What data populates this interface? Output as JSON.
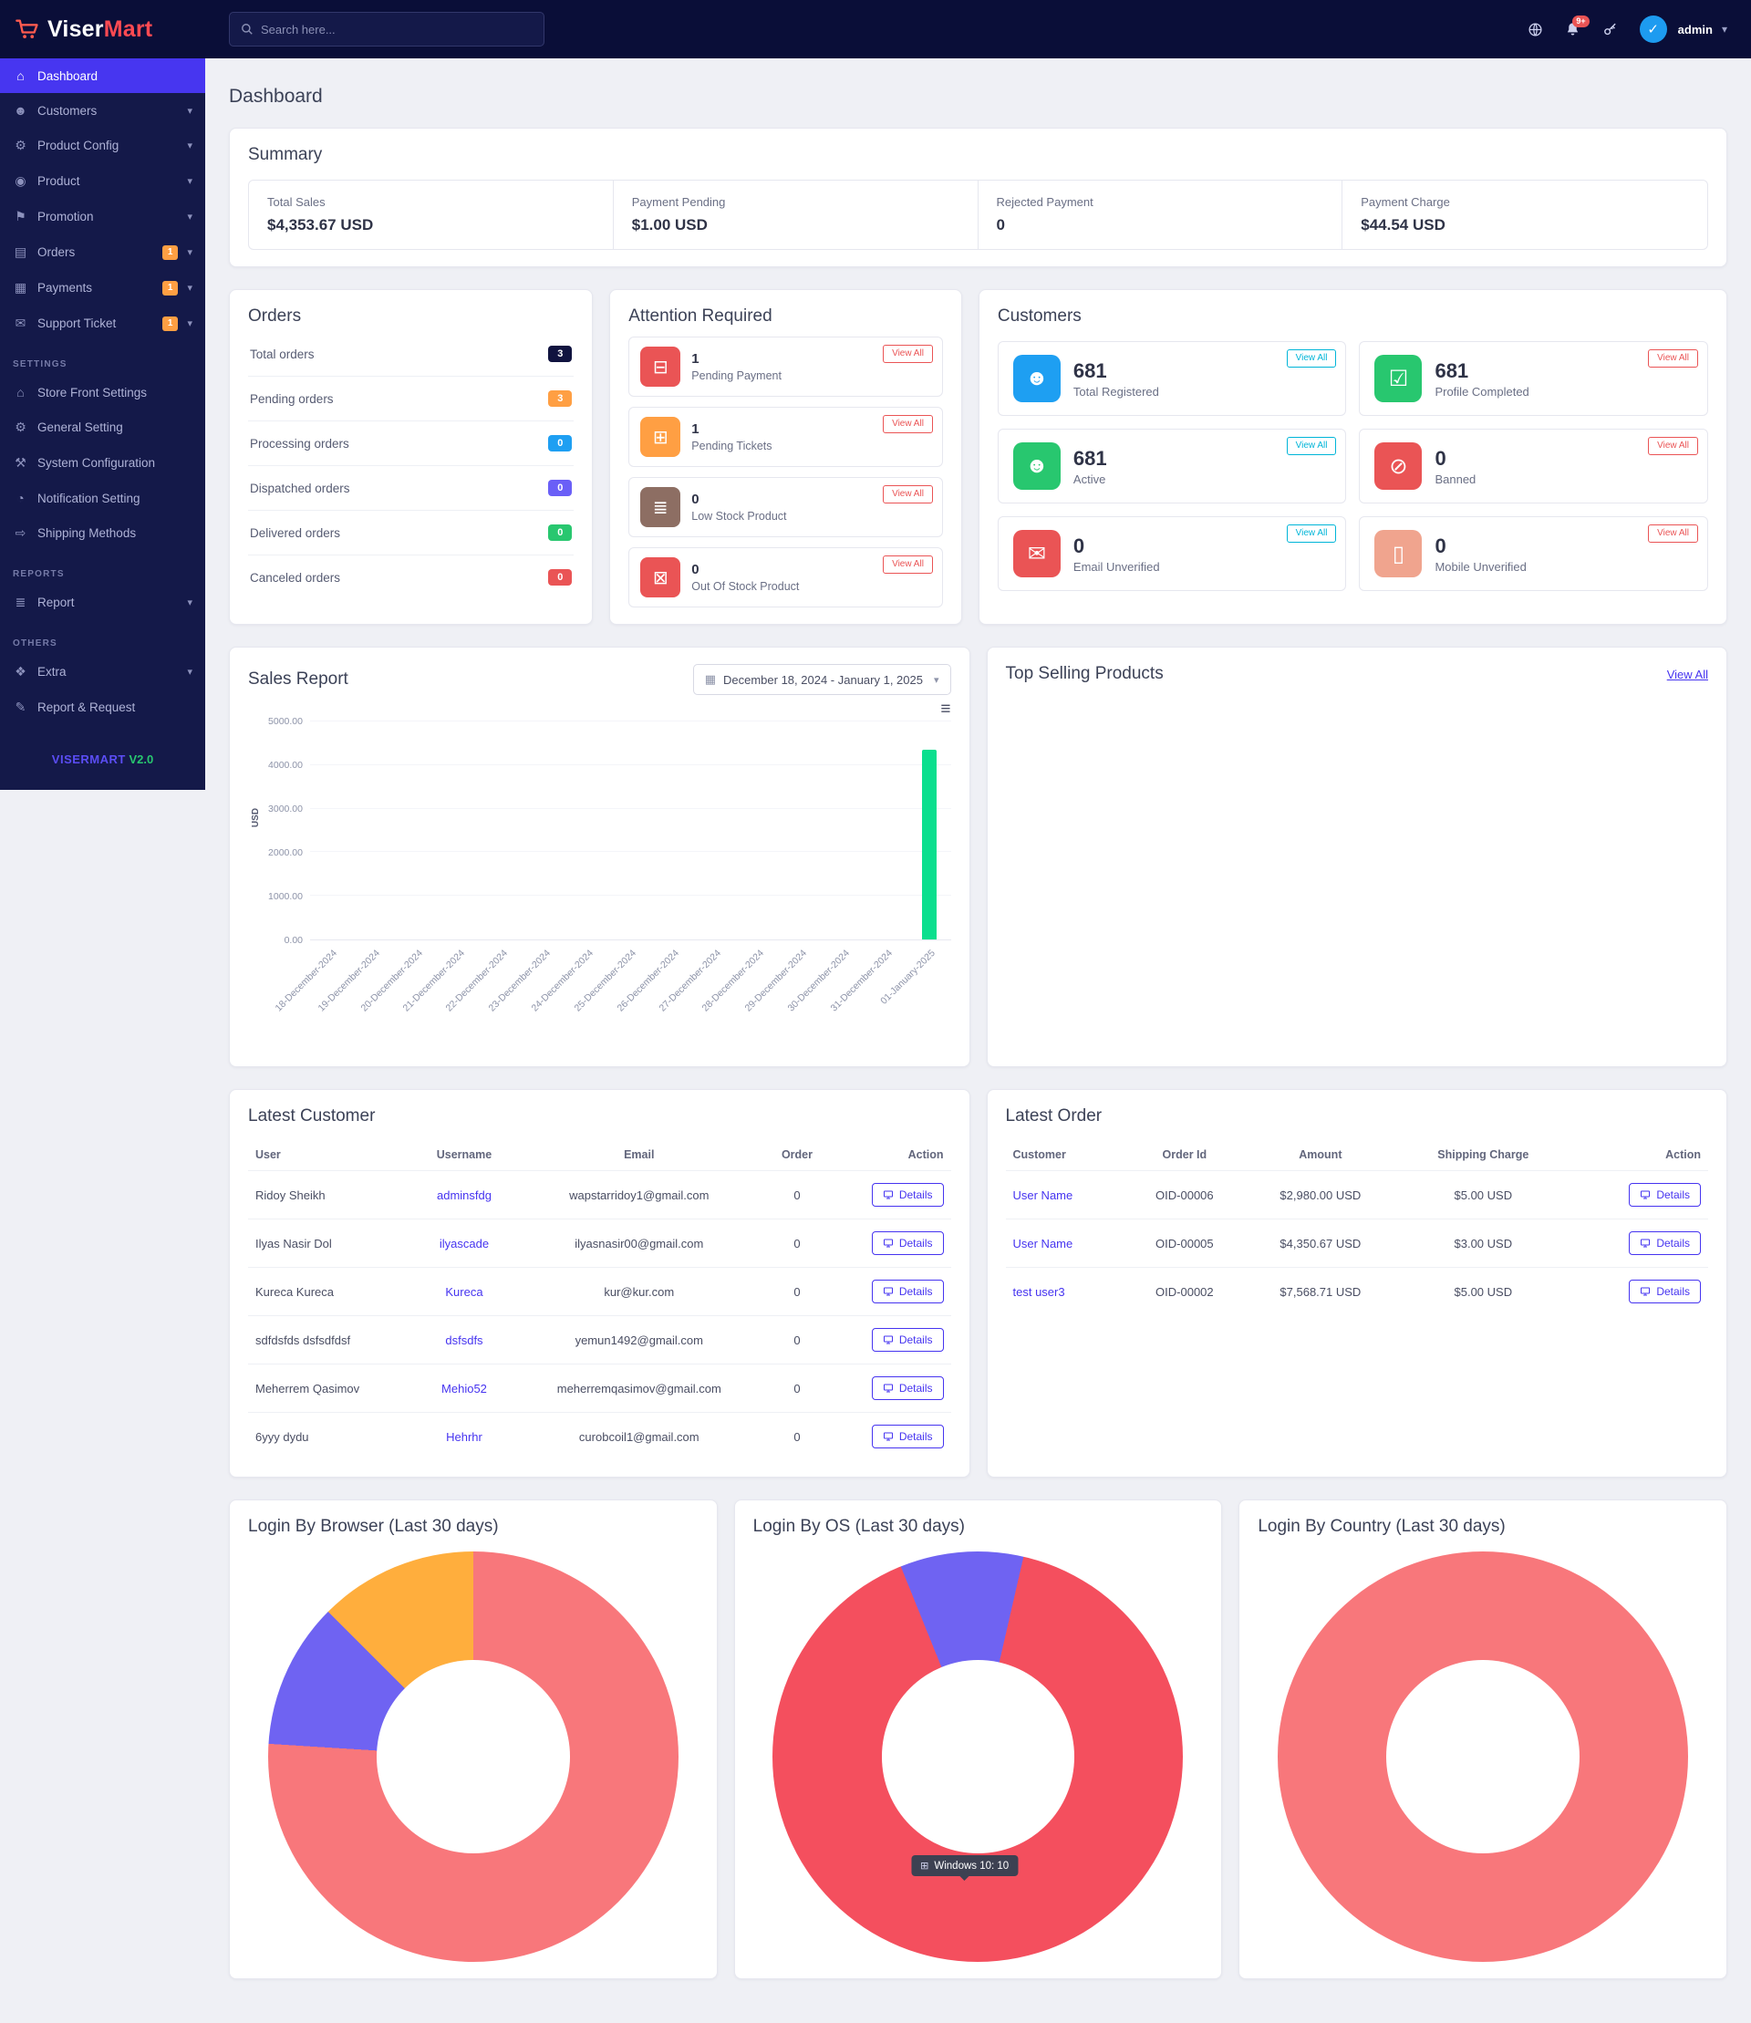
{
  "navbar": {
    "search_placeholder": "Search here...",
    "notification_badge": "9+",
    "user": "admin",
    "icons": [
      "globe-icon",
      "bell-icon",
      "key-icon",
      "avatar-check-icon",
      "chevron-down-icon"
    ]
  },
  "brand": {
    "name_primary": "Viser",
    "name_accent": "Mart",
    "version_brand": "VISERMART",
    "version": "V2.0"
  },
  "page": {
    "title": "Dashboard"
  },
  "sidebar": {
    "sections": [
      {
        "header": null,
        "items": [
          {
            "label": "Dashboard",
            "icon": "dashboard-icon",
            "active": true
          },
          {
            "label": "Customers",
            "icon": "customers-icon",
            "chevron": true
          },
          {
            "label": "Product Config",
            "icon": "product-config-icon",
            "chevron": true
          },
          {
            "label": "Product",
            "icon": "product-icon",
            "chevron": true
          },
          {
            "label": "Promotion",
            "icon": "promotion-icon",
            "chevron": true
          },
          {
            "label": "Orders",
            "icon": "orders-icon",
            "badge": "1",
            "chevron": true
          },
          {
            "label": "Payments",
            "icon": "payments-icon",
            "badge": "1",
            "chevron": true
          },
          {
            "label": "Support Ticket",
            "icon": "support-ticket-icon",
            "badge": "1",
            "chevron": true
          }
        ]
      },
      {
        "header": "SETTINGS",
        "items": [
          {
            "label": "Store Front Settings",
            "icon": "store-front-icon"
          },
          {
            "label": "General Setting",
            "icon": "general-setting-icon"
          },
          {
            "label": "System Configuration",
            "icon": "system-config-icon"
          },
          {
            "label": "Notification Setting",
            "icon": "notification-icon"
          },
          {
            "label": "Shipping Methods",
            "icon": "shipping-icon"
          }
        ]
      },
      {
        "header": "REPORTS",
        "items": [
          {
            "label": "Report",
            "icon": "report-icon",
            "chevron": true
          }
        ]
      },
      {
        "header": "OTHERS",
        "items": [
          {
            "label": "Extra",
            "icon": "extra-icon",
            "chevron": true
          },
          {
            "label": "Report & Request",
            "icon": "report-request-icon"
          }
        ]
      }
    ]
  },
  "summary": {
    "title": "Summary",
    "items": [
      {
        "label": "Total Sales",
        "value": "$4,353.67 USD"
      },
      {
        "label": "Payment Pending",
        "value": "$1.00 USD"
      },
      {
        "label": "Rejected Payment",
        "value": "0"
      },
      {
        "label": "Payment Charge",
        "value": "$44.54 USD"
      }
    ]
  },
  "orders_card": {
    "title": "Orders",
    "rows": [
      {
        "label": "Total orders",
        "count": "3",
        "color": "#10133f"
      },
      {
        "label": "Pending orders",
        "count": "3",
        "color": "#ff9f43"
      },
      {
        "label": "Processing orders",
        "count": "0",
        "color": "#1e9ff2"
      },
      {
        "label": "Dispatched orders",
        "count": "0",
        "color": "#6a5ff7"
      },
      {
        "label": "Delivered orders",
        "count": "0",
        "color": "#28c76f"
      },
      {
        "label": "Canceled orders",
        "count": "0",
        "color": "#ea5455"
      }
    ]
  },
  "attention": {
    "title": "Attention Required",
    "view_all": "View All",
    "items": [
      {
        "count": "1",
        "label": "Pending Payment",
        "icon": "pending-payment-icon",
        "color": "#ea5455"
      },
      {
        "count": "1",
        "label": "Pending Tickets",
        "icon": "pending-tickets-icon",
        "color": "#ff9f43"
      },
      {
        "count": "0",
        "label": "Low Stock Product",
        "icon": "low-stock-icon",
        "color": "#8d6e63"
      },
      {
        "count": "0",
        "label": "Out Of Stock Product",
        "icon": "out-of-stock-icon",
        "color": "#ea5455"
      }
    ]
  },
  "customers_card": {
    "title": "Customers",
    "view_all": "View All",
    "items": [
      {
        "count": "681",
        "label": "Total Registered",
        "icon": "users-icon",
        "color": "#1e9ff2",
        "view_color": "#00b5d8"
      },
      {
        "count": "681",
        "label": "Profile Completed",
        "icon": "profile-completed-icon",
        "color": "#28c76f",
        "view_color": "#ea5455"
      },
      {
        "count": "681",
        "label": "Active",
        "icon": "active-users-icon",
        "color": "#28c76f",
        "view_color": "#00b5d8"
      },
      {
        "count": "0",
        "label": "Banned",
        "icon": "banned-icon",
        "color": "#ea5455",
        "view_color": "#ea5455"
      },
      {
        "count": "0",
        "label": "Email Unverified",
        "icon": "email-unverified-icon",
        "color": "#ea5455",
        "view_color": "#00b5d8"
      },
      {
        "count": "0",
        "label": "Mobile Unverified",
        "icon": "mobile-unverified-icon",
        "color": "#f0a48e",
        "view_color": "#ea5455"
      }
    ]
  },
  "sales_report": {
    "title": "Sales Report",
    "date_range": "December 18, 2024 - January 1, 2025"
  },
  "top_selling": {
    "title": "Top Selling Products",
    "view_all": "View All"
  },
  "latest_customer": {
    "title": "Latest Customer",
    "headers": [
      "User",
      "Username",
      "Email",
      "Order",
      "Action"
    ],
    "details_label": "Details",
    "rows": [
      {
        "user": "Ridoy Sheikh",
        "username": "adminsfdg",
        "email": "wapstarridoy1@gmail.com",
        "order": "0"
      },
      {
        "user": "Ilyas Nasir Dol",
        "username": "ilyascade",
        "email": "ilyasnasir00@gmail.com",
        "order": "0"
      },
      {
        "user": "Kureca Kureca",
        "username": "Kureca",
        "email": "kur@kur.com",
        "order": "0"
      },
      {
        "user": "sdfdsfds dsfsdfdsf",
        "username": "dsfsdfs",
        "email": "yemun1492@gmail.com",
        "order": "0"
      },
      {
        "user": "Meherrem Qasimov",
        "username": "Mehio52",
        "email": "meherremqasimov@gmail.com",
        "order": "0"
      },
      {
        "user": "6yyy dydu",
        "username": "Hehrhr",
        "email": "curobcoil1@gmail.com",
        "order": "0"
      }
    ]
  },
  "latest_order": {
    "title": "Latest Order",
    "headers": [
      "Customer",
      "Order Id",
      "Amount",
      "Shipping Charge",
      "Action"
    ],
    "details_label": "Details",
    "rows": [
      {
        "customer": "User Name",
        "order_id": "OID-00006",
        "amount": "$2,980.00 USD",
        "shipping": "$5.00 USD"
      },
      {
        "customer": "User Name",
        "order_id": "OID-00005",
        "amount": "$4,350.67 USD",
        "shipping": "$3.00 USD"
      },
      {
        "customer": "test user3",
        "order_id": "OID-00002",
        "amount": "$7,568.71 USD",
        "shipping": "$5.00 USD"
      }
    ]
  },
  "chart_data": [
    {
      "type": "bar",
      "title": "Sales Report",
      "ylabel": "USD",
      "ylim": [
        0,
        5000
      ],
      "yticks": [
        "0.00",
        "1000.00",
        "2000.00",
        "3000.00",
        "4000.00",
        "5000.00"
      ],
      "categories": [
        "18-December-2024",
        "19-December-2024",
        "20-December-2024",
        "21-December-2024",
        "22-December-2024",
        "23-December-2024",
        "24-December-2024",
        "25-December-2024",
        "26-December-2024",
        "27-December-2024",
        "28-December-2024",
        "29-December-2024",
        "30-December-2024",
        "31-December-2024",
        "01-January-2025"
      ],
      "values": [
        0,
        0,
        0,
        0,
        0,
        0,
        0,
        0,
        0,
        0,
        0,
        0,
        0,
        0,
        4353.67
      ],
      "bar_color": "#0bdf8e",
      "grid": "off",
      "legend": "none"
    },
    {
      "type": "pie",
      "title": "Login By Browser (Last 30 days)",
      "rotation": 0,
      "segments": [
        {
          "value": 76,
          "color": "#f8777b"
        },
        {
          "value": 11.5,
          "color": "#6f63f2"
        },
        {
          "value": 12.5,
          "color": "#ffae3d"
        }
      ]
    },
    {
      "type": "pie",
      "title": "Login By OS (Last 30 days)",
      "rotation": 338,
      "segments": [
        {
          "value": 9.7,
          "color": "#6f63f2"
        },
        {
          "value": 90.3,
          "color": "#f44f5e"
        }
      ],
      "tooltip": "Windows 10: 10"
    },
    {
      "type": "pie",
      "title": "Login By Country (Last 30 days)",
      "rotation": 0,
      "segments": [
        {
          "value": 100,
          "color": "#f8777b"
        }
      ]
    }
  ]
}
